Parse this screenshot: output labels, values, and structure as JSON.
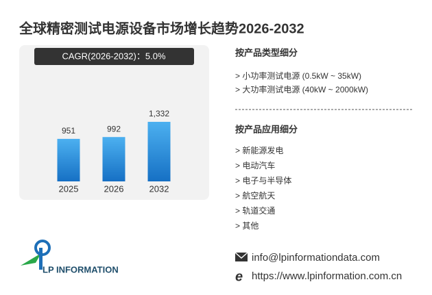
{
  "chart_data": {
    "type": "bar",
    "title": "全球精密测试电源设备市场增长趋势2026-2032",
    "annotation": "CAGR(2026-2032)：5.0%",
    "categories": [
      "2025",
      "2026",
      "2032"
    ],
    "values": [
      951,
      992,
      1332
    ],
    "value_labels": [
      "951",
      "992",
      "1,332"
    ],
    "color": "#2e8fde"
  },
  "segments": [
    {
      "heading": "按产品类型细分",
      "items": [
        "> 小功率测试电源 (0.5kW ~ 35kW)",
        "> 大功率测试电源 (40kW ~ 2000kW)"
      ]
    },
    {
      "heading": "按产品应用细分",
      "items": [
        "> 新能源发电",
        "> 电动汽车",
        "> 电子与半导体",
        "> 航空航天",
        "> 轨道交通",
        "> 其他"
      ]
    }
  ],
  "logo": "LP INFORMATION",
  "contact": {
    "email": "info@lpinformationdata.com",
    "website": "https://www.lpinformation.com.cn"
  }
}
